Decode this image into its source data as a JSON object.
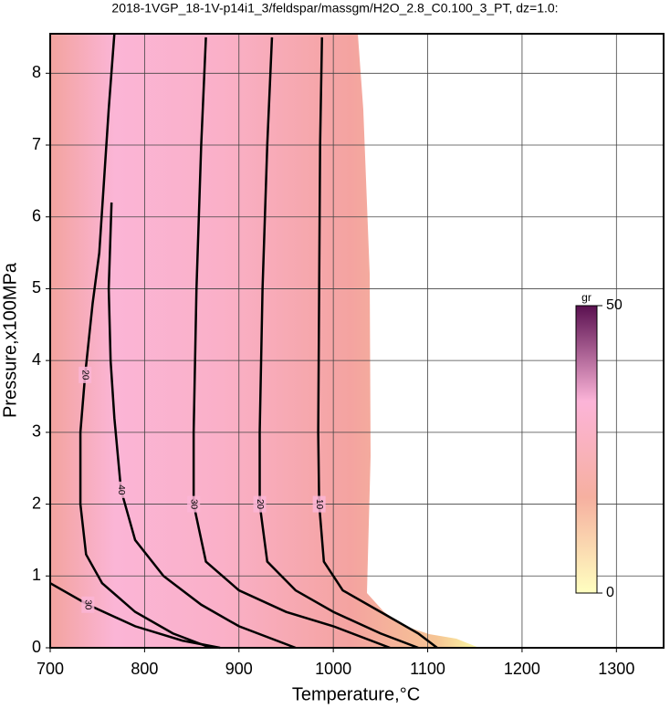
{
  "chart_data": {
    "type": "contour",
    "title": "2018-1VGP_18-1V-p14i1_3/feldspar/massgm/H2O_2.8_C0.100_3_PT, dz=1.0:",
    "x_label": "Temperature,°C",
    "y_label": "Pressure,x100MPa",
    "xlim": [
      700,
      1350
    ],
    "ylim": [
      0,
      8.55
    ],
    "xticks": [
      700,
      800,
      900,
      1000,
      1100,
      1200,
      1300
    ],
    "yticks": [
      0,
      1,
      2,
      3,
      4,
      5,
      6,
      7,
      8
    ],
    "grid": true,
    "contours": [
      {
        "level": 10,
        "x": [
          988,
          986,
          985,
          984,
          985,
          990,
          1010,
          1050,
          1090,
          1110
        ],
        "y": [
          8.5,
          7,
          5,
          3,
          2,
          1.2,
          0.8,
          0.5,
          0.2,
          0
        ]
      },
      {
        "level": 20,
        "x": [
          935,
          930,
          925,
          922,
          922,
          930,
          960,
          1000,
          1050,
          1090
        ],
        "y": [
          8.5,
          7,
          5,
          3,
          2,
          1.2,
          0.8,
          0.5,
          0.2,
          0
        ]
      },
      {
        "level": 30,
        "x": [
          865,
          860,
          855,
          852,
          852,
          865,
          900,
          950,
          1000,
          1060
        ],
        "y": [
          8.5,
          7,
          5,
          3,
          2,
          1.2,
          0.8,
          0.5,
          0.3,
          0
        ]
      },
      {
        "level": 40,
        "x": [
          765,
          762,
          764,
          768,
          775,
          790,
          820,
          860,
          900,
          960
        ],
        "y": [
          6.2,
          5,
          4,
          3.2,
          2.2,
          1.5,
          1.0,
          0.6,
          0.3,
          0
        ]
      },
      {
        "level": 20,
        "x": [
          768,
          762,
          757,
          752,
          745,
          737,
          732,
          732,
          738,
          755,
          790,
          830,
          870
        ],
        "y": [
          8.55,
          7.5,
          6.5,
          5.5,
          4.8,
          3.8,
          3,
          2,
          1.3,
          0.9,
          0.5,
          0.2,
          0
        ]
      },
      {
        "level": 30,
        "x": [
          700,
          740,
          790,
          840,
          880
        ],
        "y": [
          0.9,
          0.6,
          0.3,
          0.1,
          0
        ]
      }
    ],
    "colorbar": {
      "label": "gr",
      "lim": [
        0,
        50
      ],
      "ticks": [
        0,
        50
      ],
      "colors": [
        "#ffffc0",
        "#f6b0a0",
        "#fcb4d8",
        "#5a1050"
      ]
    }
  }
}
